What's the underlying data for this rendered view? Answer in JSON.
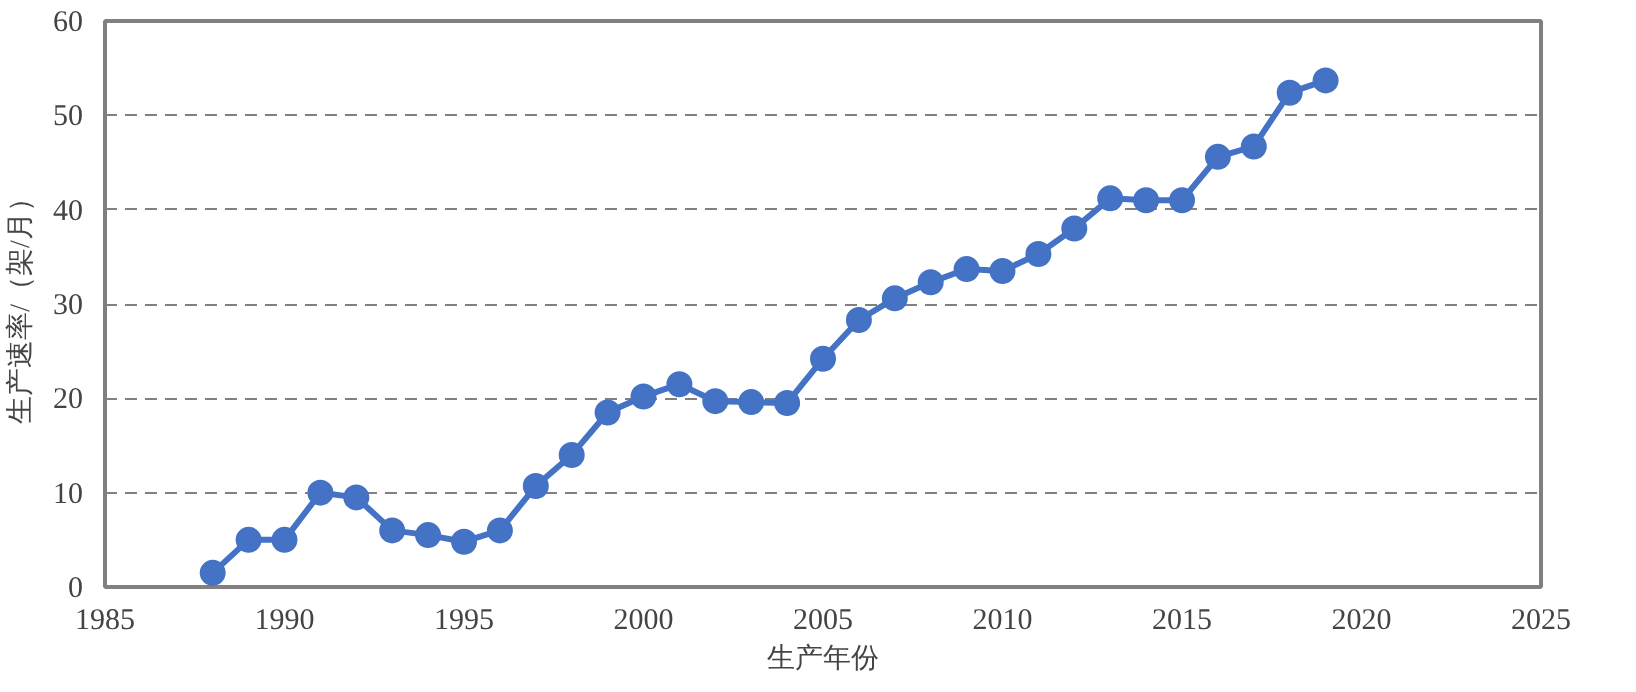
{
  "chart_data": {
    "type": "line",
    "xlabel": "生产年份",
    "ylabel": "生产速率/（架/月）",
    "x": [
      1988,
      1989,
      1990,
      1991,
      1992,
      1993,
      1994,
      1995,
      1996,
      1997,
      1998,
      1999,
      2000,
      2001,
      2002,
      2003,
      2004,
      2005,
      2006,
      2007,
      2008,
      2009,
      2010,
      2011,
      2012,
      2013,
      2014,
      2015,
      2016,
      2017,
      2018,
      2019
    ],
    "series": [
      {
        "color": "#4472c4",
        "values": [
          1.5,
          5,
          5,
          10,
          9.5,
          6,
          5.5,
          4.8,
          6,
          10.7,
          14,
          18.5,
          20.2,
          21.5,
          19.7,
          19.6,
          19.5,
          24.2,
          28.3,
          30.6,
          32.3,
          33.7,
          33.5,
          35.3,
          38,
          41.2,
          41,
          41,
          45.6,
          46.7,
          52.4,
          53.7
        ]
      }
    ],
    "xlim": [
      1985,
      2025
    ],
    "xticks": [
      1985,
      1990,
      1995,
      2000,
      2005,
      2010,
      2015,
      2020,
      2025
    ],
    "ylim": [
      0,
      60
    ],
    "yticks": [
      0,
      10,
      20,
      30,
      40,
      50,
      60
    ],
    "grid": "y",
    "marker": "circle",
    "line_style": "solid"
  }
}
